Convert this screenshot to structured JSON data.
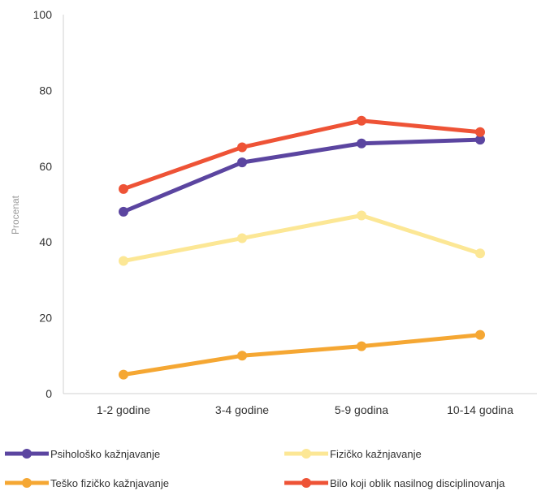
{
  "chart_data": {
    "type": "line",
    "title": "",
    "xlabel": "",
    "ylabel": "Procenat",
    "ylim": [
      0,
      100
    ],
    "yticks": [
      0,
      20,
      40,
      60,
      80,
      100
    ],
    "categories": [
      "1-2 godine",
      "3-4 godine",
      "5-9 godina",
      "10-14 godina"
    ],
    "grid": false,
    "legend_position": "bottom",
    "series": [
      {
        "name": "Psihološko kažnjavanje",
        "color": "#5b45a0",
        "values": [
          48,
          61,
          66,
          67
        ]
      },
      {
        "name": "Fizičko kažnjavanje",
        "color": "#fce795",
        "values": [
          35,
          41,
          47,
          37
        ]
      },
      {
        "name": "Teško fizičko kažnjavanje",
        "color": "#f5a733",
        "values": [
          5,
          10,
          12.5,
          15.5
        ]
      },
      {
        "name": "Bilo koji oblik nasilnog disciplinovanja",
        "color": "#ee5336",
        "values": [
          54,
          65,
          72,
          69
        ]
      }
    ]
  }
}
